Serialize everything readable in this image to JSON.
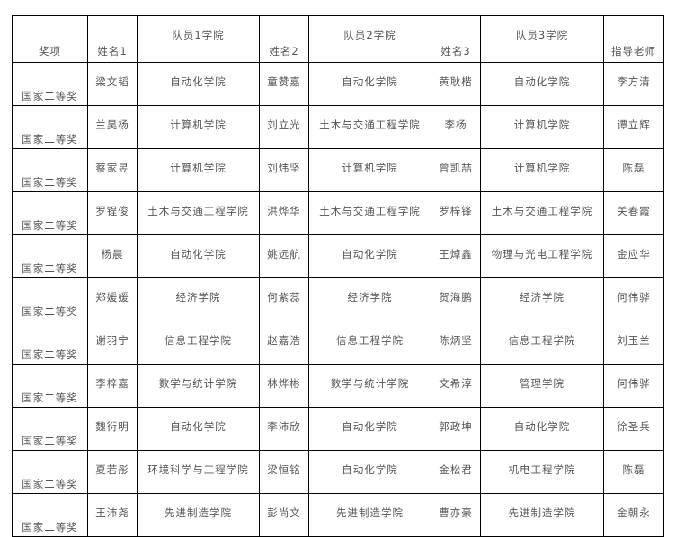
{
  "headers": [
    "奖项",
    "姓名1",
    "队员1学院",
    "姓名2",
    "队员2学院",
    "姓名3",
    "队员3学院",
    "指导老师"
  ],
  "rows": [
    [
      "国家二等奖",
      "梁文韬",
      "自动化学院",
      "童赞嘉",
      "自动化学院",
      "黄耿楷",
      "自动化学院",
      "李方清"
    ],
    [
      "国家二等奖",
      "兰昊杨",
      "计算机学院",
      "刘立光",
      "土木与交通工程学院",
      "李杨",
      "计算机学院",
      "谭立辉"
    ],
    [
      "国家二等奖",
      "蔡家昱",
      "计算机学院",
      "刘炜坚",
      "计算机学院",
      "曾凯喆",
      "计算机学院",
      "陈磊"
    ],
    [
      "国家二等奖",
      "罗锃俊",
      "土木与交通工程学院",
      "洪烨华",
      "土木与交通工程学院",
      "罗梓锋",
      "土木与交通工程学院",
      "关春霞"
    ],
    [
      "国家二等奖",
      "杨晨",
      "自动化学院",
      "姚远航",
      "自动化学院",
      "王焯鑫",
      "物理与光电工程学院",
      "金应华"
    ],
    [
      "国家二等奖",
      "郑媛媛",
      "经济学院",
      "何紫蕊",
      "经济学院",
      "贺海鹏",
      "经济学院",
      "何伟骅"
    ],
    [
      "国家二等奖",
      "谢羽宁",
      "信息工程学院",
      "赵嘉浩",
      "信息工程学院",
      "陈炳坚",
      "信息工程学院",
      "刘玉兰"
    ],
    [
      "国家二等奖",
      "李梓嘉",
      "数学与统计学院",
      "林烨彬",
      "数学与统计学院",
      "文希淳",
      "管理学院",
      "何伟骅"
    ],
    [
      "国家二等奖",
      "魏衍明",
      "自动化学院",
      "李沛欣",
      "自动化学院",
      "郭政坤",
      "自动化学院",
      "徐圣兵"
    ],
    [
      "国家二等奖",
      "夏若彤",
      "环境科学与工程学院",
      "梁恒铭",
      "自动化学院",
      "金松君",
      "机电工程学院",
      "陈磊"
    ],
    [
      "国家二等奖",
      "王沛尧",
      "先进制造学院",
      "彭尚文",
      "先进制造学院",
      "曹亦豪",
      "先进制造学院",
      "金朝永"
    ]
  ]
}
